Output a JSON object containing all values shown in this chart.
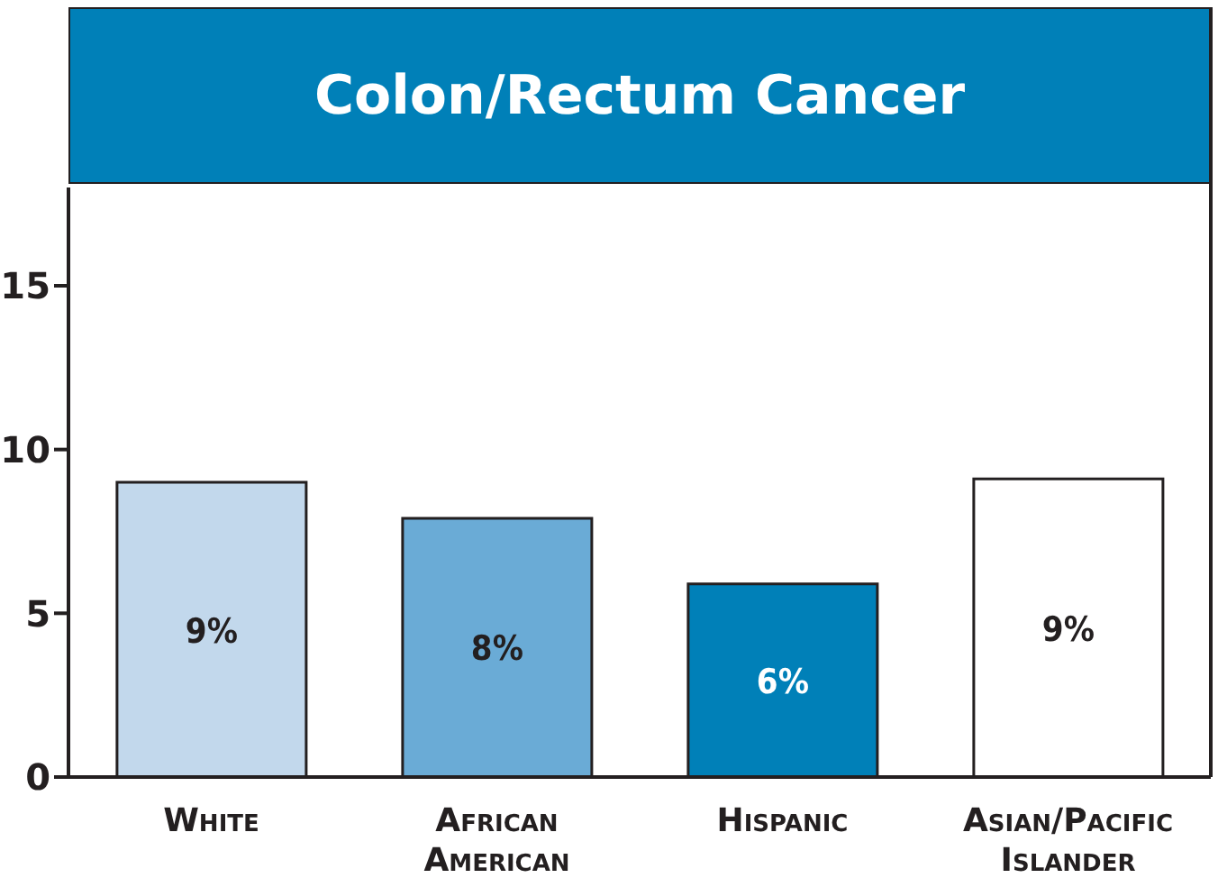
{
  "chart_data": {
    "type": "bar",
    "title": "Colon/Rectum Cancer",
    "categories": [
      "White",
      "African American",
      "Hispanic",
      "Asian/Pacific Islander"
    ],
    "values": [
      9,
      7.9,
      5.9,
      9.1
    ],
    "colors": [
      "#c2d8ec",
      "#6aabd6",
      "#0080b8",
      "#ffffff"
    ],
    "value_labels": [
      "9%",
      "8%",
      "6%",
      "9%"
    ],
    "ylim": [
      0,
      18
    ],
    "yticks": [
      0,
      5,
      10,
      15
    ]
  }
}
